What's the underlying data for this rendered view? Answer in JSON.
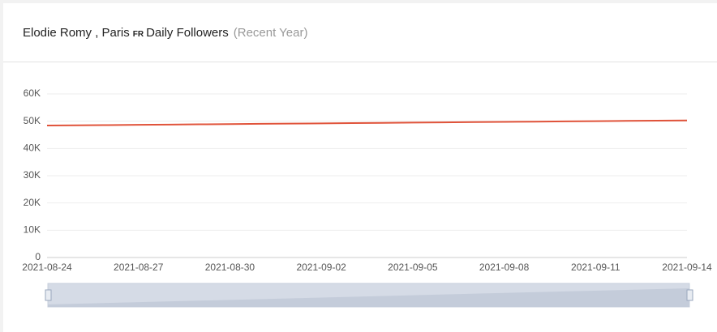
{
  "chart_data": {
    "type": "line",
    "title": "Elodie Romy , Paris",
    "title_badge": "FR",
    "title_suffix": "Daily Followers",
    "subtitle": "(Recent Year)",
    "categories": [
      "2021-08-24",
      null,
      null,
      "2021-08-27",
      null,
      null,
      "2021-08-30",
      null,
      null,
      "2021-09-02",
      null,
      null,
      "2021-09-05",
      null,
      null,
      "2021-09-08",
      null,
      null,
      "2021-09-11",
      null,
      null,
      "2021-09-14"
    ],
    "series": [
      {
        "color": "#e0533a",
        "values": [
          48400,
          48490,
          48580,
          48670,
          48760,
          48850,
          48940,
          49030,
          49120,
          49210,
          49300,
          49390,
          49480,
          49570,
          49660,
          49750,
          49840,
          49930,
          50020,
          50110,
          50200,
          50290
        ]
      }
    ],
    "ylim": [
      0,
      60000
    ],
    "yticks": [
      0,
      {
        "value": 10000,
        "label": "10K"
      },
      {
        "value": 20000,
        "label": "20K"
      },
      {
        "value": 30000,
        "label": "30K"
      },
      {
        "value": 40000,
        "label": "40K"
      },
      {
        "value": 50000,
        "label": "50K"
      },
      {
        "value": 60000,
        "label": "60K"
      }
    ],
    "grid": true
  }
}
